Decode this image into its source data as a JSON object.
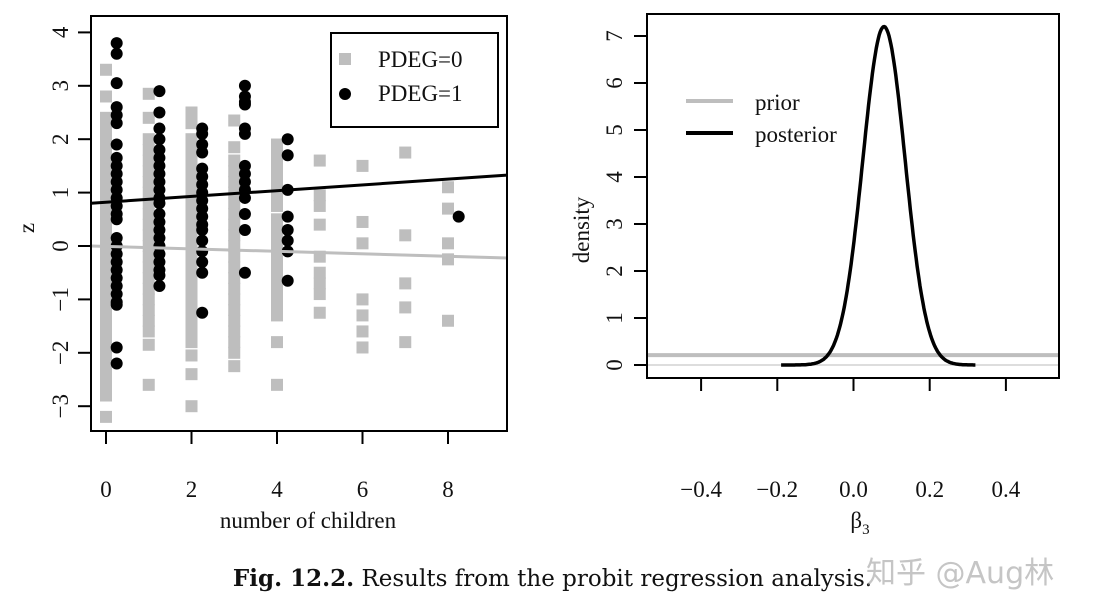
{
  "caption": {
    "label": "Fig. 12.2.",
    "text": "Results from the probit regression analysis."
  },
  "watermark": "知乎 @Aug林",
  "chart_data": [
    {
      "type": "scatter",
      "xlabel": "number of children",
      "ylabel": "z",
      "xlim": [
        -0.35,
        9.38
      ],
      "ylim": [
        -3.4,
        4.3
      ],
      "xticks": [
        0,
        2,
        4,
        6,
        8
      ],
      "yticks": [
        -3,
        -2,
        -1,
        0,
        1,
        2,
        3,
        4
      ],
      "grid": false,
      "legend_position": "top-right",
      "series": [
        {
          "name": "PDEG=0",
          "color": "#bebebe",
          "marker": "square",
          "x_offset": 0,
          "points": {
            "0": [
              3.3,
              2.8,
              2.4,
              2.2,
              2.0,
              1.8,
              1.6,
              1.4,
              1.2,
              1.0,
              0.8,
              0.6,
              0.4,
              0.2,
              0.0,
              -0.2,
              -0.4,
              -0.6,
              -0.8,
              -1.0,
              -1.2,
              -1.4,
              -1.6,
              -1.8,
              -2.0,
              -2.2,
              -2.4,
              -2.6,
              -2.8,
              -3.2
            ],
            "1": [
              2.85,
              2.4,
              2.0,
              1.8,
              1.6,
              1.4,
              1.2,
              1.0,
              0.8,
              0.6,
              0.4,
              0.2,
              0.0,
              -0.2,
              -0.4,
              -0.6,
              -0.8,
              -1.0,
              -1.2,
              -1.4,
              -1.6,
              -1.85,
              -2.6
            ],
            "2": [
              2.5,
              2.3,
              2.0,
              1.8,
              1.6,
              1.4,
              1.2,
              1.0,
              0.8,
              0.6,
              0.4,
              0.2,
              0.0,
              -0.2,
              -0.4,
              -0.6,
              -0.8,
              -1.0,
              -1.2,
              -1.4,
              -1.6,
              -1.8,
              -2.05,
              -2.4,
              -3.0
            ],
            "3": [
              2.35,
              1.85,
              1.6,
              1.4,
              1.2,
              1.0,
              0.8,
              0.6,
              0.4,
              0.2,
              0.0,
              -0.2,
              -0.4,
              -0.6,
              -0.8,
              -1.0,
              -1.2,
              -1.4,
              -1.6,
              -1.8,
              -2.0,
              -2.25
            ],
            "4": [
              1.9,
              1.7,
              1.5,
              1.3,
              1.1,
              0.9,
              0.75,
              0.5,
              0.3,
              0.1,
              -0.1,
              -0.3,
              -0.5,
              -0.7,
              -0.9,
              -1.1,
              -1.3,
              -1.8,
              -2.6
            ],
            "5": [
              1.6,
              0.95,
              0.75,
              0.4,
              -0.2,
              -0.5,
              -0.7,
              -0.9,
              -1.25
            ],
            "6": [
              1.5,
              0.45,
              0.05,
              -1.0,
              -1.3,
              -1.6,
              -1.9
            ],
            "7": [
              1.75,
              0.2,
              -0.7,
              -1.15,
              -1.8
            ],
            "8": [
              1.1,
              0.7,
              0.05,
              -0.25,
              -1.4
            ]
          }
        },
        {
          "name": "PDEG=1",
          "color": "#000000",
          "marker": "circle",
          "x_offset": 0.25,
          "points": {
            "0": [
              3.8,
              3.6,
              3.05,
              2.6,
              2.45,
              2.3,
              1.9,
              1.65,
              1.5,
              1.35,
              1.2,
              1.05,
              0.9,
              0.75,
              0.6,
              0.5,
              0.15,
              0.0,
              -0.15,
              -0.3,
              -0.45,
              -0.6,
              -0.75,
              -0.9,
              -1.05,
              -1.1,
              -1.9,
              -2.2
            ],
            "1": [
              2.9,
              2.5,
              2.2,
              2.0,
              1.8,
              1.65,
              1.5,
              1.35,
              1.2,
              1.05,
              0.9,
              0.8,
              0.6,
              0.45,
              0.3,
              0.15,
              0.0,
              -0.15,
              -0.3,
              -0.45,
              -0.55,
              -0.75
            ],
            "2": [
              2.2,
              2.1,
              1.9,
              1.75,
              1.45,
              1.3,
              1.15,
              1.0,
              0.85,
              0.7,
              0.55,
              0.4,
              0.3,
              0.1,
              -0.1,
              -0.3,
              -0.5,
              -1.25
            ],
            "3": [
              3.0,
              2.8,
              2.7,
              2.65,
              2.2,
              2.1,
              1.5,
              1.35,
              1.2,
              1.05,
              0.9,
              0.6,
              0.3,
              -0.5
            ],
            "4": [
              2.0,
              1.7,
              1.05,
              0.55,
              0.3,
              0.1,
              -0.1,
              -0.65
            ],
            "8": [
              0.55
            ]
          }
        }
      ],
      "fit_lines": [
        {
          "group": "PDEG=0",
          "color": "#bebebe",
          "intercept": -0.008,
          "slope": -0.023
        },
        {
          "group": "PDEG=1",
          "color": "#000000",
          "intercept": 0.82,
          "slope": 0.054
        }
      ]
    },
    {
      "type": "line",
      "xlabel": "β",
      "xlabel_sub": "3",
      "ylabel": "density",
      "xlim": [
        -0.54,
        0.54
      ],
      "ylim": [
        -0.2,
        7.6
      ],
      "xticks": [
        "−0.4",
        "−0.2",
        "0.0",
        "0.2",
        "0.4"
      ],
      "xtick_values": [
        -0.4,
        -0.2,
        0.0,
        0.2,
        0.4
      ],
      "yticks": [
        0,
        1,
        2,
        3,
        4,
        5,
        6,
        7
      ],
      "grid": false,
      "legend_position": "top-left",
      "series": [
        {
          "name": "prior",
          "color": "#bebebe",
          "kind": "uniform",
          "density": 0.21
        },
        {
          "name": "posterior",
          "color": "#000000",
          "kind": "normal",
          "mean": 0.08,
          "sd": 0.0555,
          "range": [
            -0.19,
            0.32
          ],
          "peak": 7.2
        }
      ]
    }
  ]
}
